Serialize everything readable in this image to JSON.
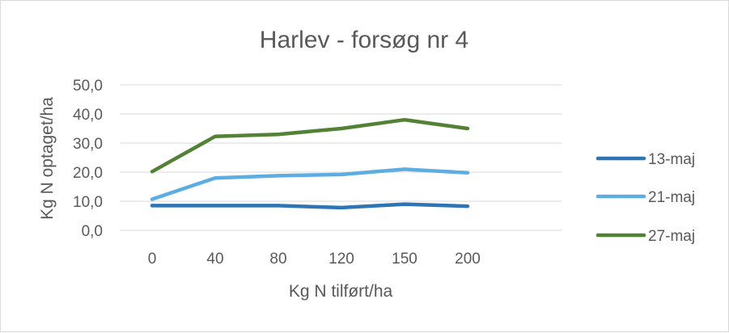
{
  "chart_data": {
    "type": "line",
    "title": "Harlev - forsøg nr 4",
    "xlabel": "Kg N tilført/ha",
    "ylabel": "Kg N optaget/ha",
    "categories": [
      "0",
      "40",
      "80",
      "120",
      "150",
      "200"
    ],
    "y_ticks": [
      "0,0",
      "10,0",
      "20,0",
      "30,0",
      "40,0",
      "50,0"
    ],
    "ylim": [
      0,
      50
    ],
    "grid": true,
    "legend_position": "right",
    "series": [
      {
        "name": "13-maj",
        "color": "#2e75b6",
        "values": [
          8.5,
          8.5,
          8.5,
          7.8,
          9.0,
          8.3
        ]
      },
      {
        "name": "21-maj",
        "color": "#5dade2",
        "values": [
          10.7,
          18.0,
          18.8,
          19.2,
          21.0,
          19.8
        ]
      },
      {
        "name": "27-maj",
        "color": "#538135",
        "values": [
          20.2,
          32.3,
          33.0,
          35.0,
          38.0,
          35.0
        ]
      }
    ]
  }
}
